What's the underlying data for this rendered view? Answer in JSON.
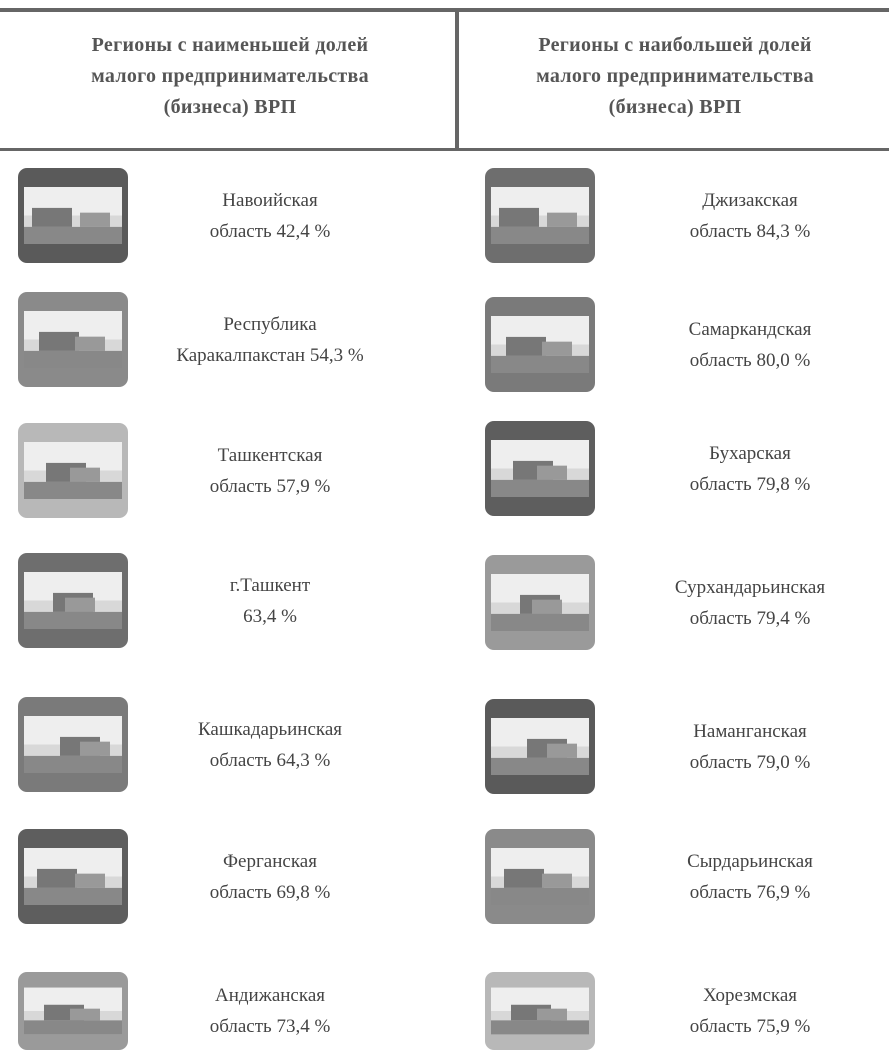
{
  "left": {
    "header": [
      "Регионы с наименьшей долей",
      "малого предпринимательства",
      "(бизнеса) ВРП"
    ],
    "items": [
      [
        "Навоийская",
        "область 42,4 %"
      ],
      [
        "Республика",
        "Каракалпакстан 54,3 %"
      ],
      [
        "Ташкентская",
        "область 57,9 %"
      ],
      [
        "г.Ташкент",
        "63,4 %"
      ],
      [
        "Кашкадарьинская",
        "область 64,3 %"
      ],
      [
        "Ферганская",
        "область 69,8 %"
      ],
      [
        "Андижанская",
        "область 73,4 %"
      ]
    ]
  },
  "right": {
    "header": [
      "Регионы с наибольшей долей",
      "малого предпринимательства",
      "(бизнеса) ВРП"
    ],
    "items": [
      [
        "Джизакская",
        "область 84,3 %"
      ],
      [
        "Самаркандская",
        "область 80,0 %"
      ],
      [
        "Бухарская",
        "область 79,8 %"
      ],
      [
        "Сурхандарьинская",
        "область 79,4 %"
      ],
      [
        "Наманганская",
        "область 79,0 %"
      ],
      [
        "Сырдарьинская",
        "область 76,9 %"
      ],
      [
        "Хорезмская",
        "область 75,9 %"
      ]
    ]
  }
}
